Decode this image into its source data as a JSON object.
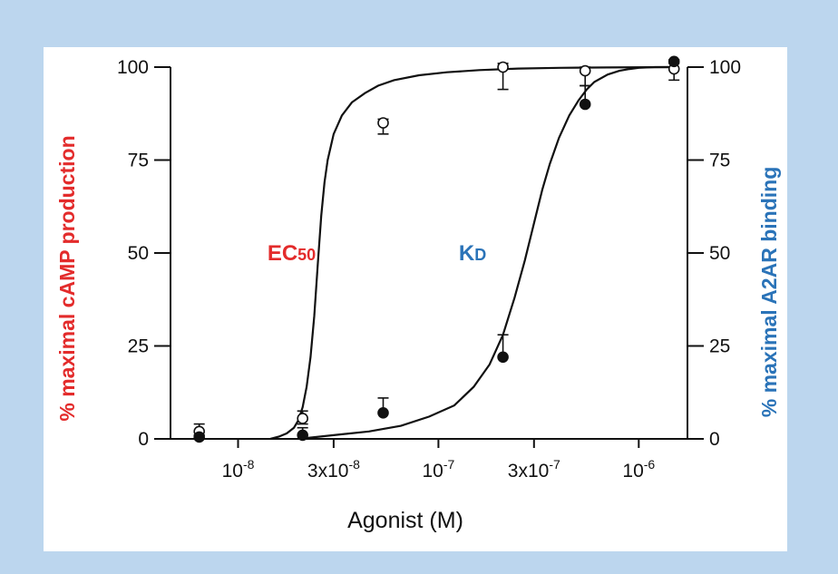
{
  "colors": {
    "background": "#bcd6ee",
    "left_axis": "#e32b2b",
    "right_axis": "#2a73b8",
    "ink": "#111111"
  },
  "chart_data": {
    "type": "scatter",
    "xlabel": "Agonist (M)",
    "ylabel_left": "% maximal cAMP production",
    "ylabel_right": "% maximal A2AR binding",
    "x_scale": "log",
    "xlim": [
      4.6e-09,
      1.75e-06
    ],
    "ylim": [
      0,
      100
    ],
    "y_ticks": [
      0,
      25,
      50,
      75,
      100
    ],
    "y_tick_labels": [
      "0",
      "25",
      "50",
      "75",
      "100"
    ],
    "x_ticks": [
      {
        "value": 1e-08,
        "base": "10",
        "exp": "-8"
      },
      {
        "value": 3e-08,
        "base": "3x10",
        "exp": "-8"
      },
      {
        "value": 1e-07,
        "base": "10",
        "exp": "-7"
      },
      {
        "value": 3e-07,
        "base": "3x10",
        "exp": "-7"
      },
      {
        "value": 1e-06,
        "base": "10",
        "exp": "-6"
      }
    ],
    "annotations": [
      {
        "label": "EC",
        "sub": "50",
        "x": 1.85e-08,
        "y": 48,
        "color": "#e32b2b"
      },
      {
        "label": "K",
        "sub": "D",
        "x": 1.48e-07,
        "y": 48,
        "color": "#2a73b8"
      }
    ],
    "series": [
      {
        "marker": "open-circle",
        "x": [
          6.4e-09,
          2.1e-08,
          5.3e-08,
          2.1e-07,
          5.4e-07,
          1.5e-06
        ],
        "y": [
          2,
          5.5,
          85,
          100,
          99,
          99.5
        ],
        "error_high": [
          4,
          7.5,
          86,
          101,
          100,
          101
        ],
        "error_low": [
          1,
          4,
          82,
          94,
          95,
          96.5
        ]
      },
      {
        "marker": "filled-circle",
        "x": [
          6.4e-09,
          2.1e-08,
          5.3e-08,
          2.1e-07,
          5.4e-07,
          1.5e-06
        ],
        "y": [
          0.5,
          1,
          7,
          22,
          90,
          101.5
        ],
        "error_high": [
          1,
          3,
          11,
          28,
          95,
          102
        ],
        "error_low": [
          0.5,
          1,
          7,
          22,
          90,
          101.5
        ]
      },
      {
        "type": "line",
        "x": [
          1.45e-08,
          1.6e-08,
          1.75e-08,
          1.9e-08,
          2e-08,
          2.1e-08,
          2.2e-08,
          2.3e-08,
          2.4e-08,
          2.5e-08,
          2.6e-08,
          2.7e-08,
          2.8e-08,
          3e-08,
          3.3e-08,
          3.7e-08,
          4.3e-08,
          5e-08,
          6e-08,
          8e-08,
          1.1e-07,
          1.6e-07,
          2.5e-07,
          4e-07,
          7e-07,
          1.5e-06
        ],
        "y": [
          0,
          0.6,
          1.5,
          3,
          5,
          8.5,
          14,
          22,
          33,
          47,
          60,
          69,
          75,
          82,
          87,
          90.5,
          93,
          95,
          96.5,
          97.8,
          98.6,
          99.2,
          99.6,
          99.8,
          99.9,
          100
        ]
      },
      {
        "type": "line",
        "x": [
          2e-08,
          3e-08,
          4.5e-08,
          6.5e-08,
          9e-08,
          1.2e-07,
          1.5e-07,
          1.8e-07,
          2.1e-07,
          2.4e-07,
          2.7e-07,
          3e-07,
          3.3e-07,
          3.6e-07,
          4e-07,
          4.5e-07,
          5e-07,
          5.5e-07,
          6e-07,
          7e-07,
          8e-07,
          9e-07,
          1e-06,
          1.2e-06,
          1.5e-06
        ],
        "y": [
          0,
          1,
          2,
          3.5,
          6,
          9,
          14,
          20,
          28,
          38,
          48,
          58,
          67,
          74,
          81,
          87,
          91,
          94,
          96,
          98,
          99,
          99.5,
          99.8,
          100,
          100
        ]
      }
    ]
  }
}
